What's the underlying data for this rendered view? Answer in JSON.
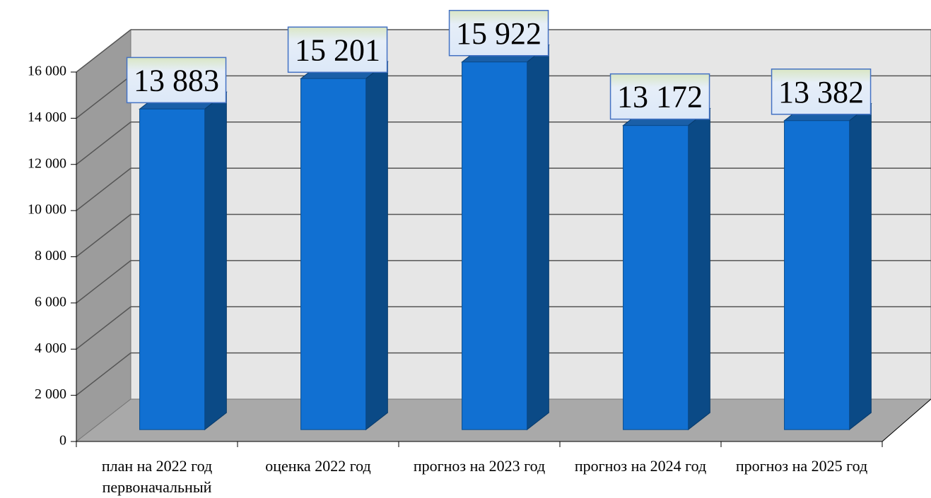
{
  "chart_data": {
    "type": "bar3d",
    "categories": [
      "план на 2022 год первоначальный",
      "оценка 2022 год",
      "прогноз на 2023 год",
      "прогноз на 2024 год",
      "прогноз на 2025 год"
    ],
    "values": [
      13883,
      15201,
      15922,
      13172,
      13382
    ],
    "value_labels": [
      "13 883",
      "15 201",
      "15 922",
      "13 172",
      "13 382"
    ],
    "color": "#1170d2",
    "ylim": [
      0,
      16000
    ],
    "yticks": [
      0,
      {
        "value": 2000,
        "label": "2 000"
      },
      {
        "value": 4000,
        "label": "4 000"
      },
      {
        "value": 6000,
        "label": "6 000"
      },
      {
        "value": 8000,
        "label": "8 000"
      },
      {
        "value": 10000,
        "label": "10 000"
      },
      {
        "value": 12000,
        "label": "12 000"
      },
      {
        "value": 14000,
        "label": "14 000"
      },
      {
        "value": 16000,
        "label": "16 000"
      }
    ],
    "grid": true
  }
}
